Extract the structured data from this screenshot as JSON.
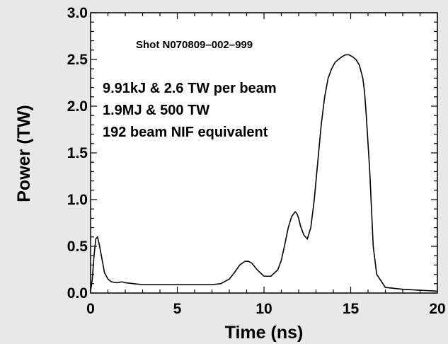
{
  "chart_data": {
    "type": "line",
    "title": "",
    "xlabel": "Time (ns)",
    "ylabel": "Power (TW)",
    "xlim": [
      0,
      20
    ],
    "ylim": [
      0,
      3.0
    ],
    "x_ticks": [
      0,
      5,
      10,
      15,
      20
    ],
    "x_tick_labels": [
      "0",
      "5",
      "10",
      "15",
      "20"
    ],
    "y_ticks": [
      0.0,
      0.5,
      1.0,
      1.5,
      2.0,
      2.5,
      3.0
    ],
    "y_tick_labels": [
      "0.0",
      "0.5",
      "1.0",
      "1.5",
      "2.0",
      "2.5",
      "3.0"
    ],
    "grid": false,
    "line_color": "#000000",
    "annotations": {
      "shot": "Shot N070809–002–999",
      "lines": [
        "9.91kJ & 2.6 TW per beam",
        "1.9MJ & 500 TW",
        "192 beam NIF equivalent"
      ]
    },
    "series": [
      {
        "x": [
          0,
          0.1,
          0.2,
          0.3,
          0.4,
          0.5,
          0.6,
          0.7,
          0.8,
          1.0,
          1.2,
          1.5,
          1.8,
          2.0,
          2.5,
          3.0,
          4.0,
          5.0,
          6.0,
          7.0,
          7.5,
          8.0,
          8.3,
          8.6,
          8.9,
          9.1,
          9.3,
          9.6,
          10.0,
          10.4,
          10.8,
          11.0,
          11.2,
          11.4,
          11.6,
          11.8,
          11.9,
          12.0,
          12.1,
          12.3,
          12.5,
          12.7,
          12.9,
          13.1,
          13.3,
          13.5,
          13.7,
          13.9,
          14.1,
          14.3,
          14.5,
          14.7,
          14.9,
          15.1,
          15.3,
          15.5,
          15.7,
          15.8,
          15.9,
          16.0,
          16.1,
          16.2,
          16.3,
          16.5,
          17.0,
          18.0,
          19.0,
          20.0
        ],
        "y": [
          0.02,
          0.15,
          0.4,
          0.58,
          0.6,
          0.52,
          0.42,
          0.32,
          0.22,
          0.15,
          0.12,
          0.11,
          0.12,
          0.11,
          0.1,
          0.09,
          0.09,
          0.09,
          0.09,
          0.09,
          0.1,
          0.15,
          0.22,
          0.3,
          0.34,
          0.34,
          0.32,
          0.25,
          0.18,
          0.18,
          0.25,
          0.35,
          0.52,
          0.7,
          0.82,
          0.87,
          0.85,
          0.8,
          0.72,
          0.62,
          0.58,
          0.7,
          1.0,
          1.4,
          1.8,
          2.1,
          2.3,
          2.4,
          2.47,
          2.5,
          2.53,
          2.55,
          2.55,
          2.53,
          2.5,
          2.44,
          2.3,
          2.15,
          1.9,
          1.6,
          1.3,
          0.9,
          0.5,
          0.2,
          0.06,
          0.04,
          0.03,
          0.02
        ]
      }
    ]
  }
}
